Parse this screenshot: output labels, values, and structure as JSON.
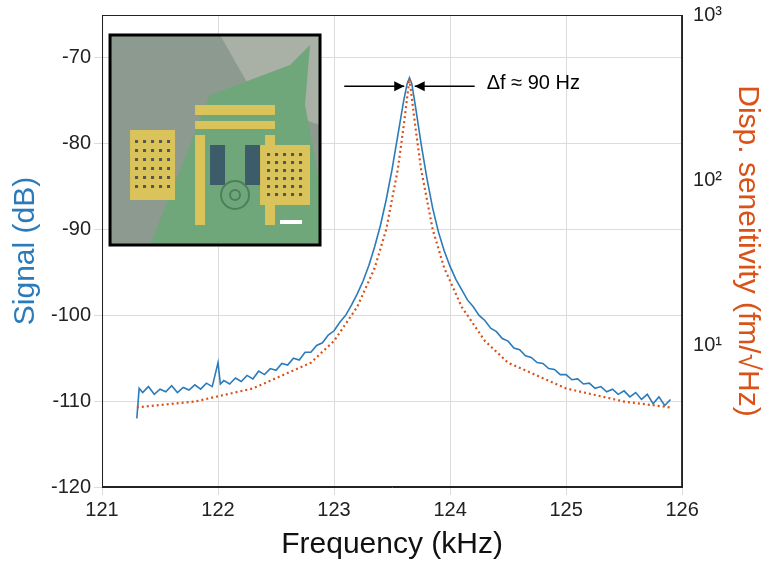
{
  "chart_data": {
    "type": "line",
    "x_label": "Frequency (kHz)",
    "y_label": "Signal (dB)",
    "y2_label": "Disp. seneitivity (fm/√Hz)",
    "xlim": [
      121,
      126
    ],
    "xticks": [
      121,
      122,
      123,
      124,
      125,
      126
    ],
    "ylim": [
      -120,
      -65
    ],
    "yticks": [
      -120,
      -110,
      -100,
      -90,
      -80,
      -70
    ],
    "y2lim": [
      1.4,
      1000
    ],
    "y2ticks": [
      {
        "value": 10,
        "label": "10¹"
      },
      {
        "value": 100,
        "label": "10²"
      },
      {
        "value": 1000,
        "label": "10³"
      }
    ],
    "log": "y2",
    "grid": true,
    "annotations": [
      {
        "text": "Δf ≈ 90 Hz",
        "x": [
          123.605,
          123.695
        ],
        "y": -73.3
      }
    ],
    "series": [
      {
        "color": "#2b7bba",
        "line_style": "solid",
        "x": [
          121.3,
          121.32,
          121.35,
          121.4,
          121.45,
          121.5,
          121.55,
          121.6,
          121.65,
          121.7,
          121.75,
          121.8,
          121.85,
          121.9,
          121.95,
          122.0,
          122.02,
          122.05,
          122.1,
          122.15,
          122.2,
          122.25,
          122.3,
          122.35,
          122.4,
          122.45,
          122.5,
          122.55,
          122.6,
          122.65,
          122.7,
          122.75,
          122.8,
          122.85,
          122.9,
          122.95,
          123.0,
          123.05,
          123.1,
          123.15,
          123.2,
          123.25,
          123.3,
          123.35,
          123.4,
          123.45,
          123.5,
          123.55,
          123.6,
          123.63,
          123.65,
          123.67,
          123.7,
          123.75,
          123.8,
          123.85,
          123.9,
          123.95,
          124.0,
          124.05,
          124.1,
          124.15,
          124.2,
          124.25,
          124.3,
          124.35,
          124.4,
          124.45,
          124.5,
          124.55,
          124.6,
          124.65,
          124.7,
          124.75,
          124.8,
          124.85,
          124.9,
          124.95,
          125.0,
          125.05,
          125.1,
          125.15,
          125.2,
          125.25,
          125.3,
          125.35,
          125.4,
          125.45,
          125.5,
          125.55,
          125.6,
          125.65,
          125.7,
          125.75,
          125.8,
          125.85,
          125.9
        ],
        "values": [
          -112,
          -108.5,
          -109,
          -108.3,
          -109.2,
          -108.6,
          -108.9,
          -108.2,
          -109,
          -108.4,
          -108.7,
          -108.1,
          -108.6,
          -107.9,
          -108.3,
          -105.5,
          -108,
          -107.6,
          -108,
          -107.3,
          -107.7,
          -107,
          -107.4,
          -106.5,
          -106.9,
          -106.2,
          -106.4,
          -105.6,
          -105.8,
          -105,
          -105.2,
          -104.3,
          -104.3,
          -103.5,
          -103.2,
          -102.3,
          -101.8,
          -100.8,
          -100,
          -98.8,
          -97.5,
          -96,
          -94.2,
          -92,
          -89.5,
          -86.5,
          -83,
          -79,
          -75,
          -73,
          -72.3,
          -73,
          -75.5,
          -80,
          -84,
          -87.5,
          -90.3,
          -92.5,
          -94.3,
          -95.8,
          -97,
          -98.2,
          -99,
          -100,
          -100.6,
          -101.5,
          -101.9,
          -102.7,
          -103,
          -103.8,
          -104,
          -104.7,
          -104.9,
          -105.5,
          -105.6,
          -106.2,
          -106.3,
          -106.9,
          -106.9,
          -107.5,
          -107.4,
          -108,
          -107.9,
          -108.5,
          -108.3,
          -108.9,
          -108.6,
          -109.2,
          -108.8,
          -109.5,
          -109,
          -109.8,
          -109.2,
          -110.3,
          -109.5,
          -110.5,
          -109.8
        ]
      },
      {
        "color": "#d95319",
        "line_style": "dotted",
        "axis": "y2",
        "x": [
          121.3,
          121.8,
          122.3,
          122.8,
          123.0,
          123.2,
          123.35,
          123.45,
          123.55,
          123.6,
          123.65,
          123.7,
          123.75,
          123.85,
          123.95,
          124.1,
          124.3,
          124.5,
          125.0,
          125.5,
          125.9
        ],
        "values": [
          4.24,
          4.6,
          5.52,
          7.9,
          10.7,
          17.2,
          29.5,
          50.6,
          117,
          213,
          412,
          213,
          117,
          50.6,
          29.5,
          17.2,
          10.7,
          7.9,
          5.52,
          4.6,
          4.24
        ]
      }
    ]
  }
}
